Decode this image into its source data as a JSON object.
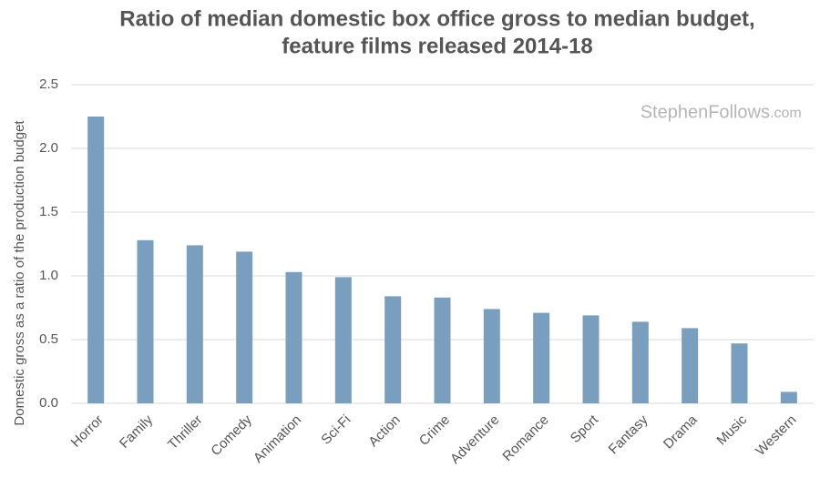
{
  "chart_data": {
    "type": "bar",
    "title": [
      "Ratio of median domestic box office gross to median budget,",
      "feature films released 2014-18"
    ],
    "ylabel": "Domestic gross as a ratio of the production budget",
    "watermark": "StephenFollows",
    "watermark_suffix": ".com",
    "categories": [
      "Horror",
      "Family",
      "Thriller",
      "Comedy",
      "Animation",
      "Sci-Fi",
      "Action",
      "Crime",
      "Adventure",
      "Romance",
      "Sport",
      "Fantasy",
      "Drama",
      "Music",
      "Western"
    ],
    "values": [
      2.25,
      1.28,
      1.24,
      1.19,
      1.03,
      0.99,
      0.84,
      0.83,
      0.74,
      0.71,
      0.69,
      0.64,
      0.59,
      0.47,
      0.09
    ],
    "color": "#7a9fbe",
    "ylim": [
      0,
      2.5
    ],
    "yticks": [
      {
        "value": 0,
        "label": "0.0"
      },
      0.5,
      {
        "value": 1,
        "label": "1.0"
      },
      1.5,
      {
        "value": 2,
        "label": "2.0"
      },
      2.5
    ],
    "grid": true
  }
}
